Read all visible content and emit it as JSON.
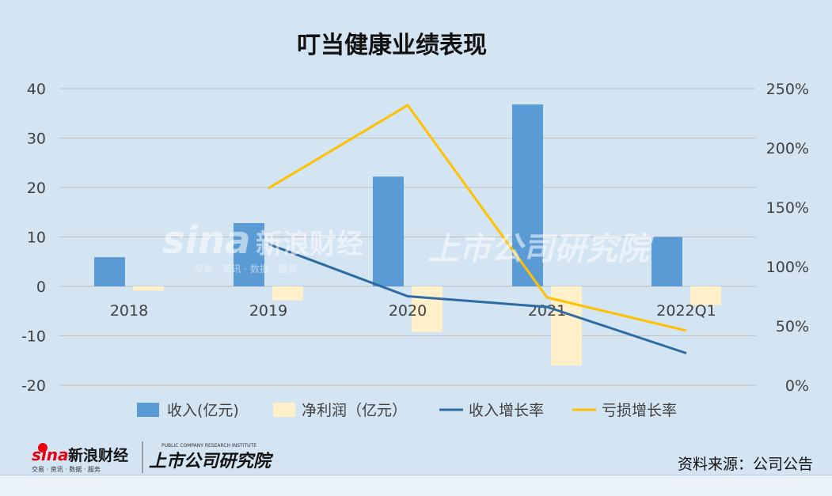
{
  "title": "叮当健康业绩表现",
  "source": "资料来源：公司公告",
  "logos": {
    "sina_brand": "sina",
    "sina_name": "新浪财经",
    "sina_tagline": "交易 · 资讯 · 数据 · 服务",
    "research_name": "上市公司研究院",
    "research_english": "PUBLIC COMPANY RESEARCH INSTITUTE"
  },
  "colors": {
    "background": "#d3e4f3",
    "revenue_bar": "#5b9bd5",
    "profit_bar": "#fff0c9",
    "revenue_growth_line": "#2e6aa4",
    "loss_growth_line": "#ffc000",
    "grid": "#bfbfbf"
  },
  "chart_data": {
    "type": "bar",
    "title": "叮当健康业绩表现",
    "categories": [
      "2018",
      "2019",
      "2020",
      "2021",
      "2022Q1"
    ],
    "y_left": {
      "range": [
        -20,
        40
      ],
      "ticks": [
        "-20",
        "-10",
        "0",
        "10",
        "20",
        "30",
        "40"
      ]
    },
    "y_right": {
      "range": [
        0,
        2.5
      ],
      "ticks": [
        "0%",
        "50%",
        "100%",
        "150%",
        "200%",
        "250%"
      ]
    },
    "grid": true,
    "legend_position": "bottom",
    "series": [
      {
        "name": "收入(亿元)",
        "type": "bar",
        "axis": "left",
        "values": [
          5.9,
          12.8,
          22.2,
          36.8,
          10.0
        ]
      },
      {
        "name": "净利润（亿元）",
        "type": "bar",
        "axis": "left",
        "values": [
          -0.9,
          -2.8,
          -9.2,
          -16.0,
          -3.8
        ]
      },
      {
        "name": "收入增长率",
        "type": "line",
        "axis": "right",
        "values": [
          null,
          1.19,
          0.75,
          0.66,
          0.27
        ]
      },
      {
        "name": "亏损增长率",
        "type": "line",
        "axis": "right",
        "values": [
          null,
          1.66,
          2.36,
          0.74,
          0.46
        ]
      }
    ]
  }
}
